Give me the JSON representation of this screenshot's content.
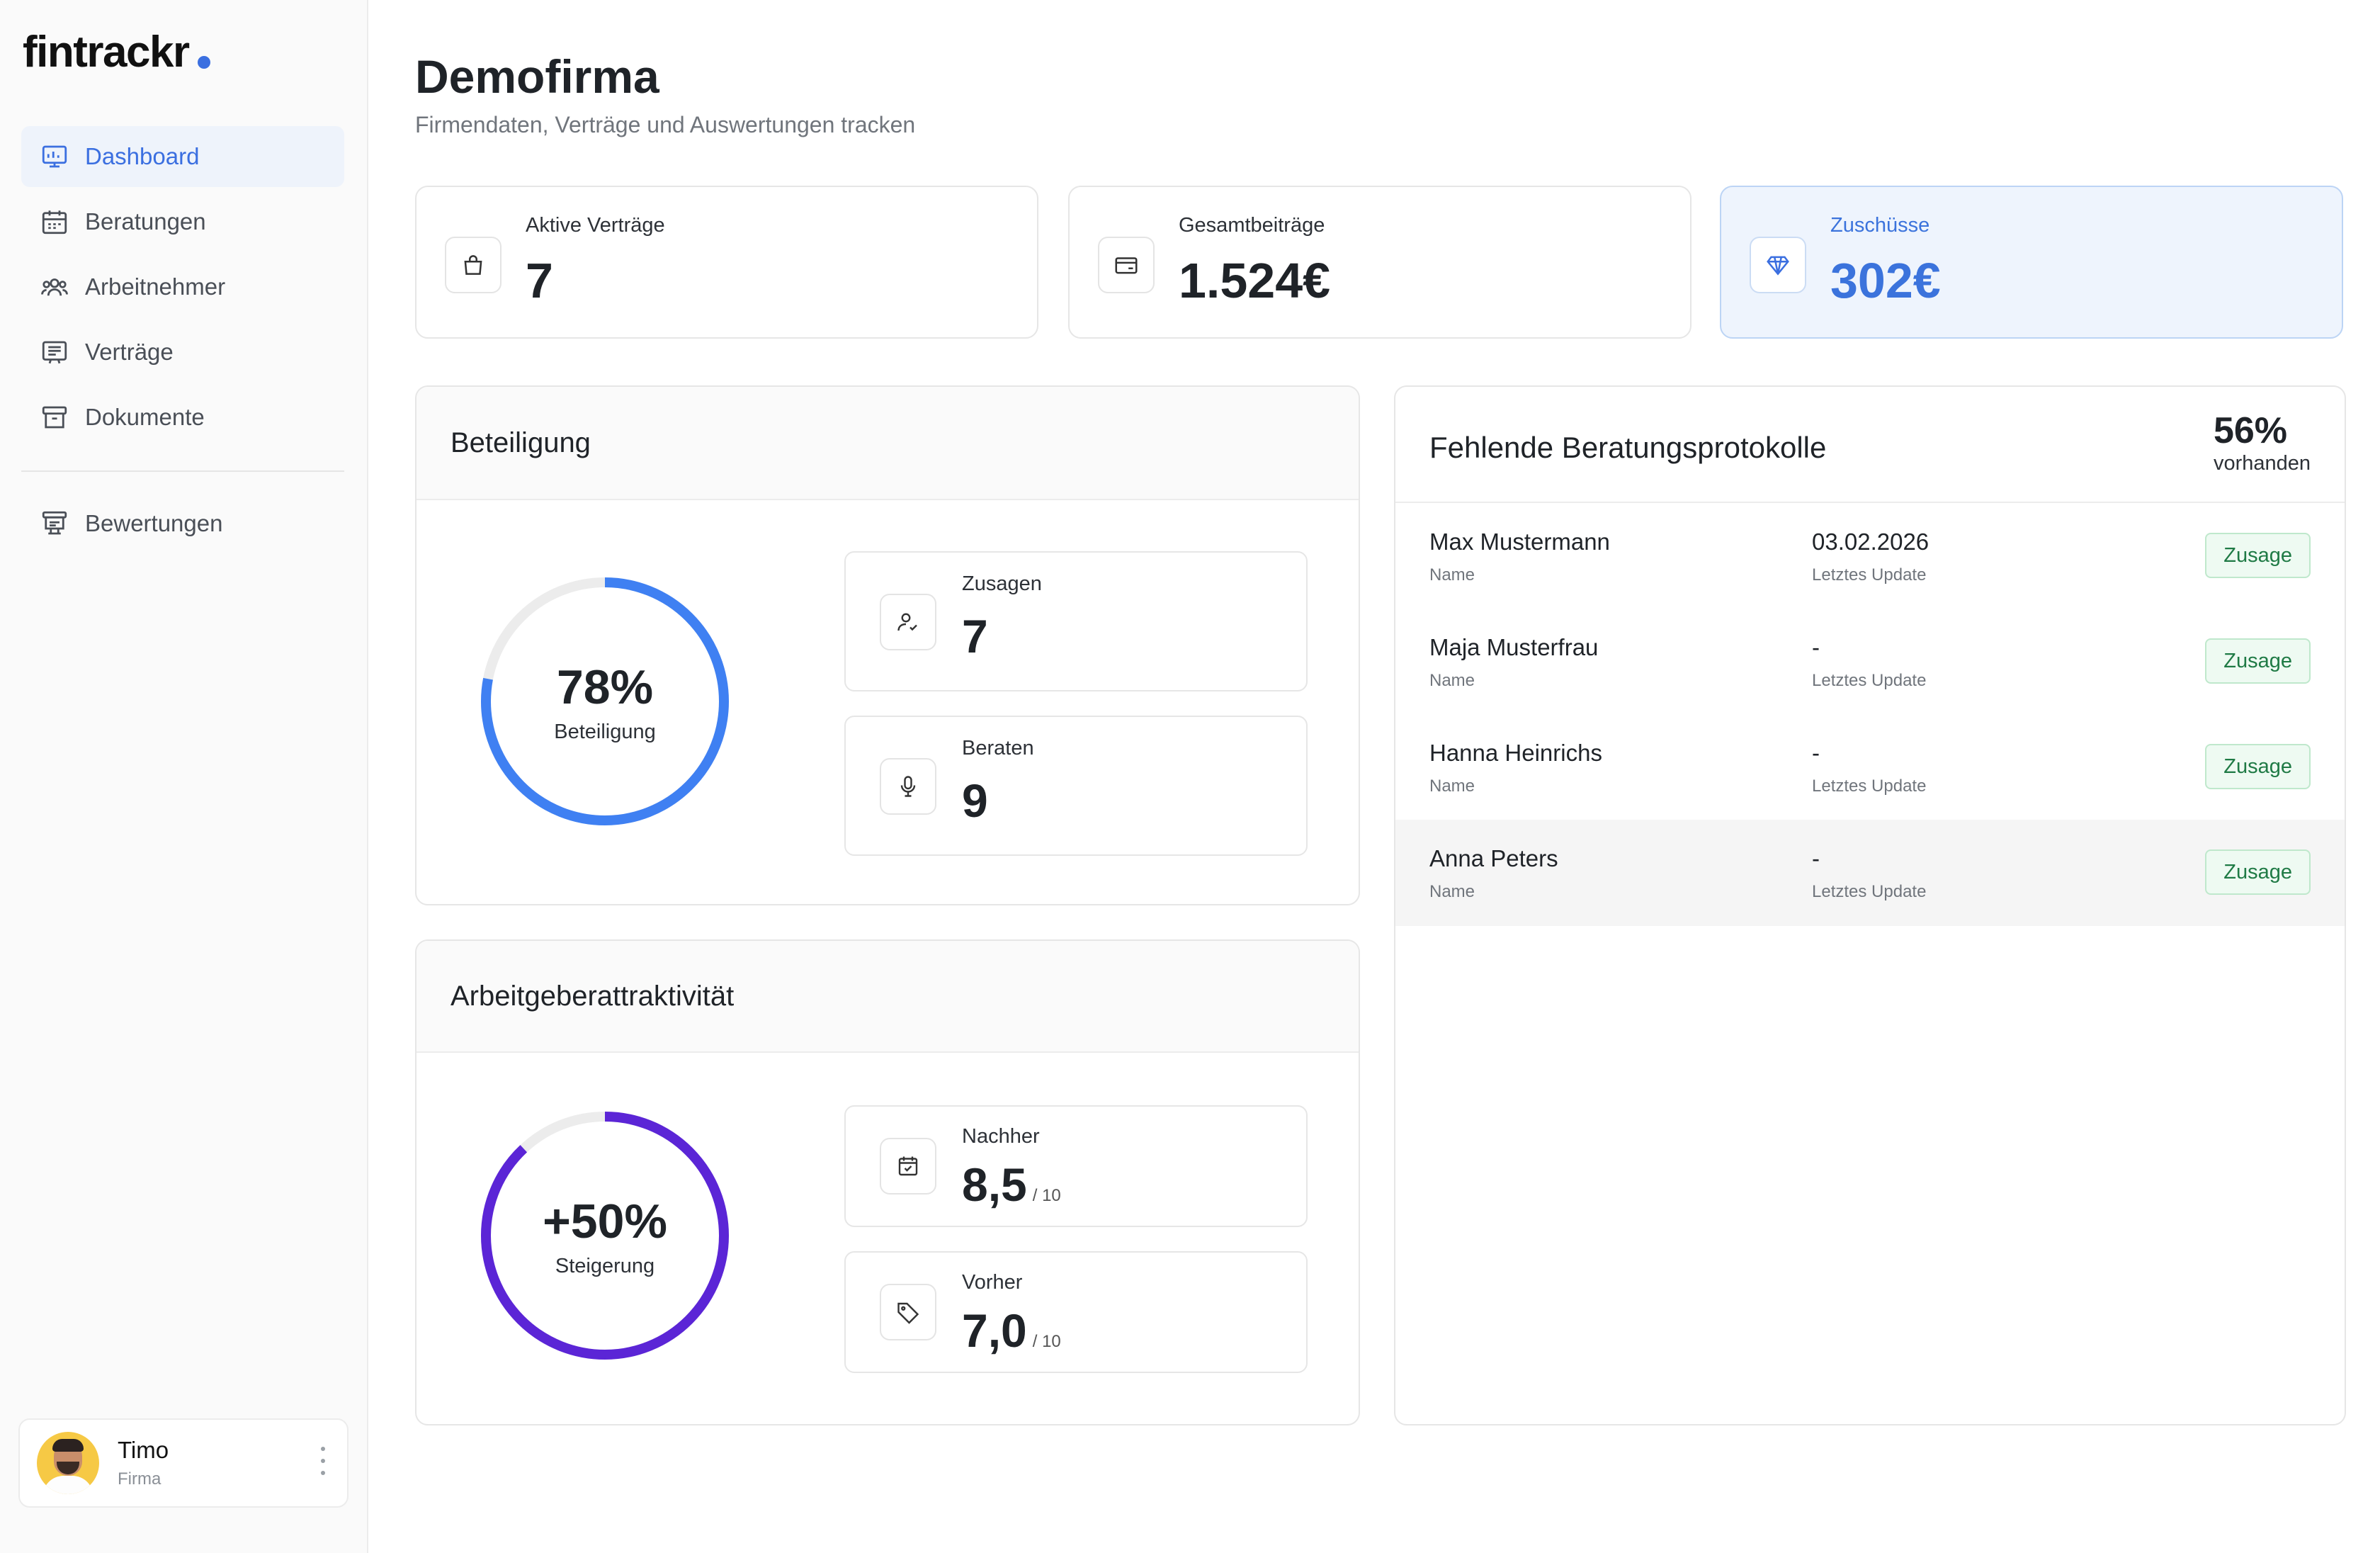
{
  "app": {
    "logo_text": "fintrackr"
  },
  "sidebar": {
    "items": [
      {
        "label": "Dashboard",
        "icon": "dashboard-icon",
        "active": true
      },
      {
        "label": "Beratungen",
        "icon": "calendar-icon"
      },
      {
        "label": "Arbeitnehmer",
        "icon": "users-icon"
      },
      {
        "label": "Verträge",
        "icon": "contract-icon"
      },
      {
        "label": "Dokumente",
        "icon": "archive-icon"
      }
    ],
    "secondary": [
      {
        "label": "Bewertungen",
        "icon": "rating-icon"
      }
    ],
    "user": {
      "name": "Timo",
      "role": "Firma"
    }
  },
  "header": {
    "title": "Demofirma",
    "subtitle": "Firmendaten, Verträge und Auswertungen tracken"
  },
  "stats": [
    {
      "label": "Aktive Verträge",
      "value": "7",
      "icon": "shopping-bag-icon"
    },
    {
      "label": "Gesamtbeiträge",
      "value": "1.524€",
      "icon": "credit-card-icon"
    },
    {
      "label": "Zuschüsse",
      "value": "302€",
      "icon": "diamond-icon",
      "highlight": true
    }
  ],
  "beteiligung": {
    "title": "Beteiligung",
    "ring": {
      "percent": 78,
      "label": "78%",
      "caption": "Beteiligung",
      "color": "#3f80f2"
    },
    "cards": [
      {
        "label": "Zusagen",
        "value": "7",
        "icon": "user-check-icon"
      },
      {
        "label": "Beraten",
        "value": "9",
        "icon": "microphone-icon"
      }
    ]
  },
  "attraktivitaet": {
    "title": "Arbeitgeberattraktivität",
    "ring": {
      "percent": 88,
      "label": "+50%",
      "caption": "Steigerung",
      "color": "#5b25d6"
    },
    "cards": [
      {
        "label": "Nachher",
        "value": "8,5",
        "suffix": "/ 10",
        "icon": "calendar-check-icon"
      },
      {
        "label": "Vorher",
        "value": "7,0",
        "suffix": "/ 10",
        "icon": "tag-icon"
      }
    ]
  },
  "protokolle": {
    "title": "Fehlende Beratungsprotokolle",
    "percent": "56%",
    "percent_label": "vorhanden",
    "rows": [
      {
        "name": "Max Mustermann",
        "name_label": "Name",
        "date": "03.02.2026",
        "date_label": "Letztes Update",
        "status": "Zusage"
      },
      {
        "name": "Maja Musterfrau",
        "name_label": "Name",
        "date": "-",
        "date_label": "Letztes Update",
        "status": "Zusage"
      },
      {
        "name": "Hanna Heinrichs",
        "name_label": "Name",
        "date": "-",
        "date_label": "Letztes Update",
        "status": "Zusage"
      },
      {
        "name": "Anna Peters",
        "name_label": "Name",
        "date": "-",
        "date_label": "Letztes Update",
        "status": "Zusage",
        "highlighted": true
      }
    ]
  },
  "colors": {
    "accent": "#3b6fe0",
    "ring_blue": "#3f80f2",
    "ring_purple": "#5b25d6",
    "badge_green": "#1f7a45"
  }
}
